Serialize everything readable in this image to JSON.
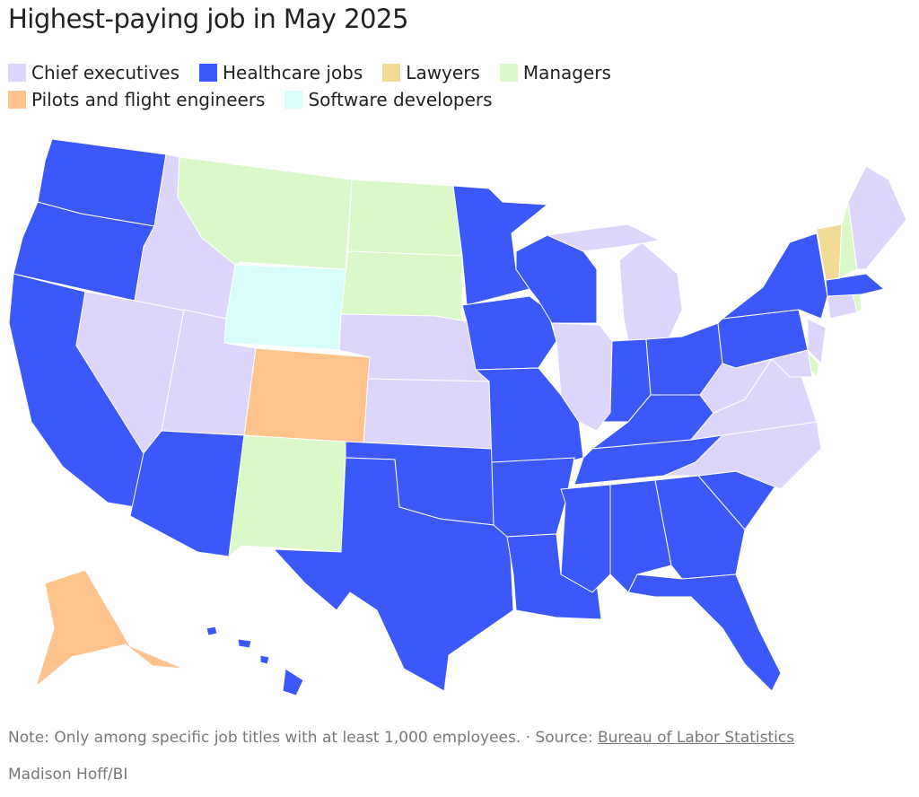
{
  "title": "Highest-paying job in May 2025",
  "legend": [
    {
      "label": "Chief executives",
      "color": "#ddd5fc"
    },
    {
      "label": "Healthcare jobs",
      "color": "#3b58fb"
    },
    {
      "label": "Lawyers",
      "color": "#f2da97"
    },
    {
      "label": "Managers",
      "color": "#dbf8c8"
    },
    {
      "label": "Pilots and flight engineers",
      "color": "#ffc38b"
    },
    {
      "label": "Software developers",
      "color": "#d8fefc"
    }
  ],
  "note": "Note: Only among specific job titles with at least 1,000 employees.",
  "source_prefix": "· Source:",
  "source_link": "Bureau of Labor Statistics",
  "credit": "Madison Hoff/BI"
}
